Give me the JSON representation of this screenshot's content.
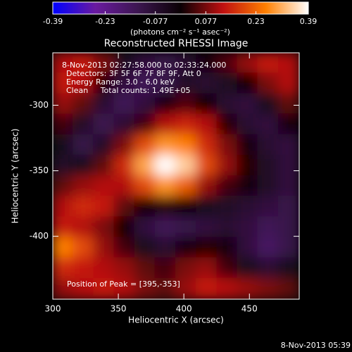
{
  "chart_data": {
    "type": "heatmap",
    "title": "Reconstructed RHESSI Image",
    "x_label": "Heliocentric X (arcsec)",
    "y_label": "Heliocentric Y (arcsec)",
    "colorbar_label": "(photons cm⁻² s⁻¹ asec⁻²)",
    "annotations": [
      "8-Nov-2013 02:27:58.000 to 02:33:24.000",
      "Detectors: 3F 5F 6F 7F 8F 9F, Att 0",
      "Energy Range: 3.0 - 6.0 keV",
      "Clean     Total counts: 1.49E+05"
    ],
    "peak_label": "Position of Peak = [395,-353]",
    "footer": "8-Nov-2013 05:39",
    "xlim": [
      300,
      488
    ],
    "ylim": [
      -448,
      -260
    ],
    "xticks": [
      300,
      350,
      400,
      450
    ],
    "yticks": [
      -300,
      -350,
      -400
    ],
    "zlim": [
      -0.39,
      0.39
    ],
    "zticks": [
      -0.39,
      -0.23,
      -0.077,
      0.077,
      0.23,
      0.39
    ],
    "colormap": [
      "#0000ff",
      "#6a1aa0",
      "#3c1650",
      "#0a0004",
      "#c01010",
      "#ff8000",
      "#ffffff"
    ],
    "x": [
      307.8,
      323.5,
      339.2,
      354.8,
      370.5,
      386.2,
      401.8,
      417.5,
      433.2,
      448.8,
      464.5,
      480.2
    ],
    "y": [
      -267.8,
      -283.5,
      -299.2,
      -314.8,
      -330.5,
      -346.2,
      -361.8,
      -377.5,
      -393.2,
      -408.8,
      -424.5,
      -440.2
    ],
    "z": [
      [
        0.12,
        0.14,
        0.08,
        -0.05,
        -0.1,
        -0.12,
        -0.08,
        -0.02,
        0.05,
        0.1,
        0.14,
        0.12
      ],
      [
        0.14,
        0.12,
        0.02,
        -0.1,
        -0.14,
        -0.12,
        -0.06,
        -0.08,
        -0.05,
        0.0,
        0.08,
        0.12
      ],
      [
        0.1,
        0.06,
        -0.08,
        -0.14,
        -0.1,
        -0.02,
        0.05,
        0.0,
        -0.08,
        -0.1,
        -0.04,
        0.06
      ],
      [
        0.04,
        -0.06,
        -0.13,
        -0.08,
        0.04,
        0.12,
        0.15,
        0.12,
        0.02,
        -0.08,
        -0.1,
        -0.02
      ],
      [
        -0.04,
        -0.12,
        -0.06,
        0.08,
        0.2,
        0.28,
        0.26,
        0.16,
        0.08,
        -0.02,
        -0.08,
        -0.1
      ],
      [
        -0.06,
        -0.04,
        0.06,
        0.16,
        0.3,
        0.39,
        0.34,
        0.2,
        0.1,
        0.02,
        -0.06,
        -0.1
      ],
      [
        0.06,
        0.1,
        0.12,
        0.12,
        0.2,
        0.28,
        0.22,
        0.1,
        0.04,
        -0.02,
        -0.06,
        -0.1
      ],
      [
        0.12,
        0.16,
        0.14,
        0.06,
        0.0,
        0.02,
        0.0,
        -0.04,
        -0.06,
        -0.08,
        -0.1,
        -0.12
      ],
      [
        0.14,
        0.12,
        0.08,
        0.0,
        -0.1,
        -0.14,
        -0.12,
        -0.1,
        -0.08,
        -0.1,
        -0.14,
        -0.12
      ],
      [
        0.26,
        0.2,
        0.1,
        0.04,
        -0.04,
        -0.08,
        -0.02,
        0.02,
        -0.02,
        -0.1,
        -0.16,
        -0.12
      ],
      [
        0.16,
        0.14,
        0.12,
        0.1,
        0.06,
        0.04,
        0.08,
        0.1,
        0.04,
        -0.04,
        -0.08,
        -0.04
      ],
      [
        0.1,
        0.12,
        0.14,
        0.12,
        0.08,
        0.06,
        0.1,
        0.14,
        0.12,
        0.1,
        0.08,
        0.06
      ]
    ]
  }
}
